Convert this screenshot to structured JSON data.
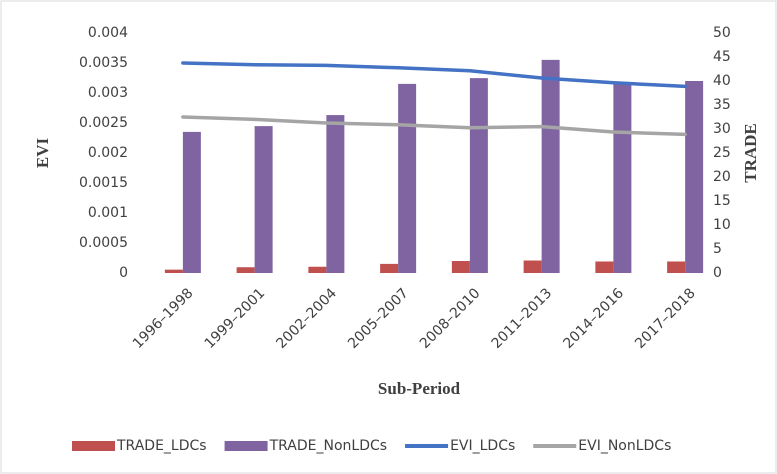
{
  "chart_data": {
    "type": "bar-line",
    "x_label": "Sub-Period",
    "y_label": "EVI",
    "y2_label": "TRADE",
    "categories": [
      "1996–1998",
      "1999–2001",
      "2002–2004",
      "2005–2007",
      "2008–2010",
      "2011–2013",
      "2014–2016",
      "2017–2018"
    ],
    "series": [
      {
        "name": "TRADE_LDCs",
        "type": "bar",
        "axis": "y2",
        "color": "#c0504d",
        "values": [
          0.7,
          1.2,
          1.3,
          1.9,
          2.5,
          2.6,
          2.4,
          2.4
        ]
      },
      {
        "name": "TRADE_NonLDCs",
        "type": "bar",
        "axis": "y2",
        "color": "#8064a2",
        "values": [
          29.4,
          30.6,
          32.9,
          39.4,
          40.6,
          44.4,
          39.4,
          40
        ]
      },
      {
        "name": "EVI_LDCs",
        "type": "line",
        "color": "#4472c4",
        "values": [
          0.0035,
          0.00347,
          0.00346,
          0.00342,
          0.00337,
          0.00325,
          0.00317,
          0.00311
        ]
      },
      {
        "name": "EVI_NonLDCs",
        "type": "line",
        "color": "#a5a5a5",
        "values": [
          0.0026,
          0.00256,
          0.0025,
          0.00247,
          0.00242,
          0.00244,
          0.00235,
          0.00231
        ]
      }
    ],
    "ylim": [
      0,
      0.004
    ],
    "yticks": [
      0,
      0.0005,
      0.001,
      0.0015,
      0.002,
      0.0025,
      0.003,
      0.0035,
      0.004
    ],
    "y2lim": [
      0,
      50
    ],
    "y2ticks": [
      0,
      5,
      10,
      15,
      20,
      25,
      30,
      35,
      40,
      45,
      50
    ],
    "legend": "bottom",
    "grid": false
  }
}
